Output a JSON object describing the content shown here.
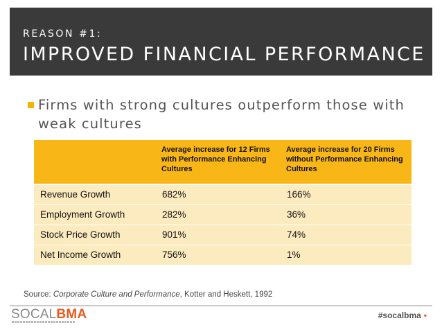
{
  "header": {
    "kicker": "REASON #1:",
    "title": "IMPROVED FINANCIAL PERFORMANCE"
  },
  "bullet": {
    "text": "Firms with strong cultures outperform those with weak cultures"
  },
  "table": {
    "headers": [
      "",
      "Average increase for 12 Firms with Performance Enhancing Cultures",
      "Average increase for 20 Firms without Performance Enhancing Cultures"
    ],
    "rows": [
      {
        "metric": "Revenue Growth",
        "with": "682%",
        "without": "166%"
      },
      {
        "metric": "Employment Growth",
        "with": "282%",
        "without": "36%"
      },
      {
        "metric": "Stock Price Growth",
        "with": "901%",
        "without": "74%"
      },
      {
        "metric": "Net Income Growth",
        "with": "756%",
        "without": "1%"
      }
    ]
  },
  "source": {
    "prefix": "Source: ",
    "title": "Corporate Culture and Performance",
    "suffix": ", Kotter and Heskett, 1992"
  },
  "footer": {
    "logo_social": "SOCAL",
    "logo_bma": "BMA",
    "hashtag": "#socalbma",
    "dot": "•"
  },
  "colors": {
    "header_bg": "#3a3a3a",
    "accent": "#f9b617",
    "table_body": "#fcebbf",
    "brand_orange": "#e85a1e"
  }
}
